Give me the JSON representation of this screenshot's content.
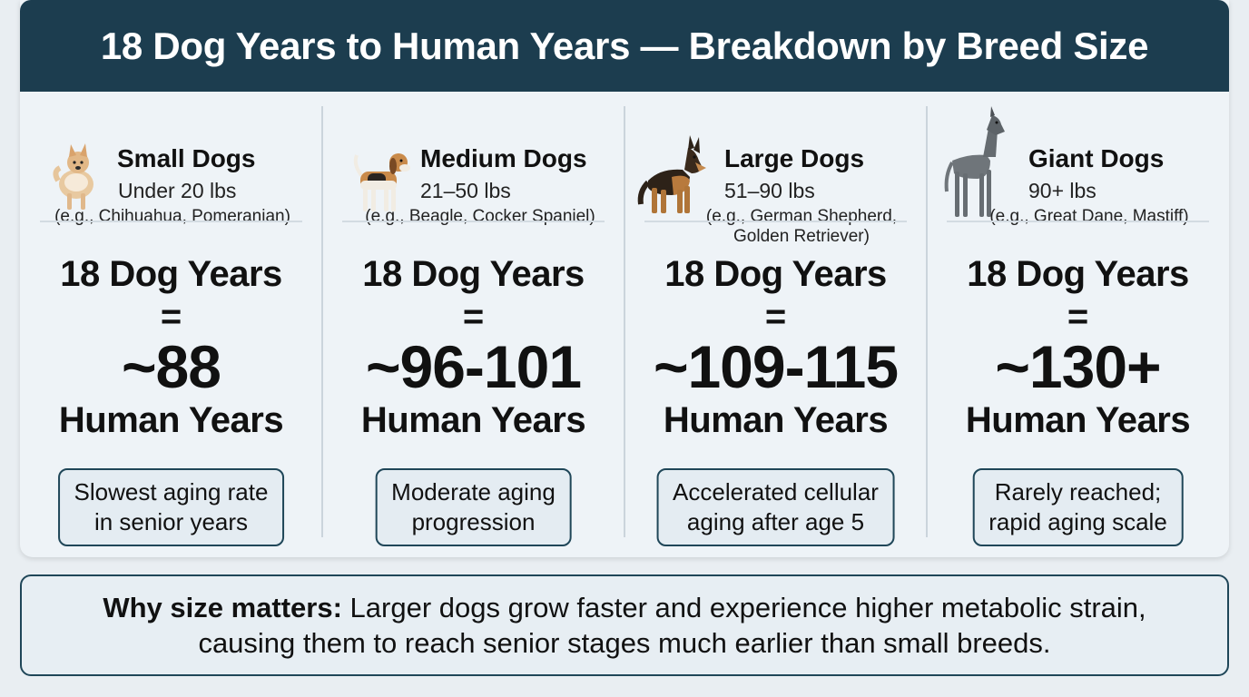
{
  "title": "18 Dog Years to Human Years — Breakdown by Breed Size",
  "columns": [
    {
      "name": "Small Dogs",
      "weight": "Under 20 lbs",
      "examples": "(e.g., Chihuahua, Pomeranian)",
      "dog_years": "18 Dog Years",
      "equals": "=",
      "human_value": "~88",
      "human_unit": "Human Years",
      "note_line1": "Slowest aging rate",
      "note_line2": "in senior years",
      "icon": "small-dog-icon"
    },
    {
      "name": "Medium Dogs",
      "weight": "21–50 lbs",
      "examples": "(e.g., Beagle, Cocker Spaniel)",
      "dog_years": "18 Dog Years",
      "equals": "=",
      "human_value": "~96-101",
      "human_unit": "Human Years",
      "note_line1": "Moderate aging",
      "note_line2": "progression",
      "icon": "medium-dog-icon"
    },
    {
      "name": "Large Dogs",
      "weight": "51–90 lbs",
      "examples_line1": "(e.g., German Shepherd,",
      "examples_line2": "Golden Retriever)",
      "dog_years": "18 Dog Years",
      "equals": "=",
      "human_value": "~109-115",
      "human_unit": "Human Years",
      "note_line1": "Accelerated cellular",
      "note_line2": "aging after age 5",
      "icon": "large-dog-icon"
    },
    {
      "name": "Giant Dogs",
      "weight": "90+ lbs",
      "examples": "(e.g., Great Dane, Mastiff)",
      "dog_years": "18 Dog Years",
      "equals": "=",
      "human_value": "~130+",
      "human_unit": "Human Years",
      "note_line1": "Rarely reached;",
      "note_line2": "rapid aging scale",
      "icon": "giant-dog-icon"
    }
  ],
  "footer": {
    "bold": "Why size matters:",
    "text1": " Larger dogs grow faster and experience higher metabolic strain,",
    "text2": "causing them to reach senior stages much earlier than small breeds."
  },
  "colors": {
    "header_bg": "#1c3d4f",
    "card_bg": "#eef3f7",
    "border": "#1f4658"
  }
}
